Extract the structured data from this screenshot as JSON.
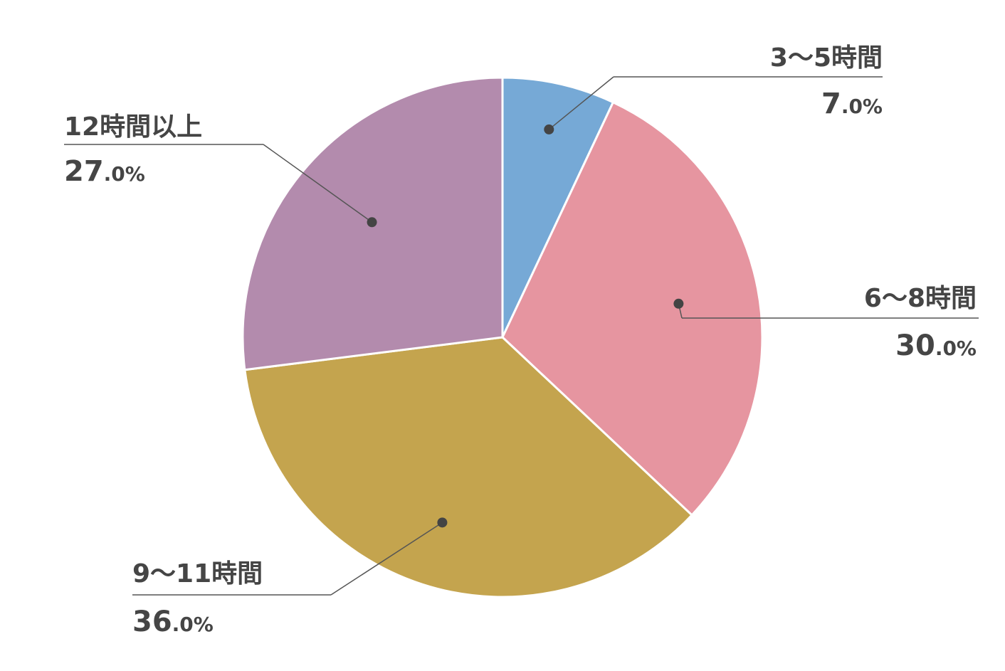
{
  "chart_data": {
    "type": "pie",
    "categories": [
      "3〜5時間",
      "6〜8時間",
      "9〜11時間",
      "12時間以上"
    ],
    "values": [
      7,
      30,
      36,
      27
    ],
    "value_labels": [
      "7.0%",
      "30.0%",
      "36.0%",
      "27.0%"
    ],
    "colors": [
      "#76a9d6",
      "#e695a0",
      "#c4a44e",
      "#b38bad"
    ]
  }
}
